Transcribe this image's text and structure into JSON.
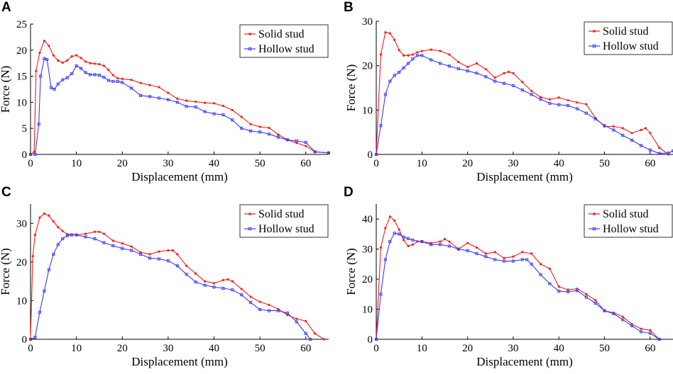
{
  "figure": {
    "colors": {
      "solid": "#ff1a1a",
      "hollow": "#3a3aff"
    }
  },
  "chart_data": [
    {
      "panel": "A",
      "type": "line",
      "xlabel": "Displacement (mm)",
      "ylabel": "Force (N)",
      "xlim": [
        0,
        65
      ],
      "ylim": [
        0,
        25
      ],
      "xticks": [
        0,
        10,
        20,
        30,
        40,
        50,
        60
      ],
      "yticks": [
        0,
        5,
        10,
        15,
        20,
        25
      ],
      "legend_position": "top-right",
      "series": [
        {
          "name": "Solid stud",
          "x": [
            0,
            0.8,
            1.2,
            2,
            3,
            4,
            5,
            6,
            7,
            8,
            9,
            10,
            11,
            12,
            13,
            14,
            15,
            16,
            17,
            18,
            19,
            20,
            22,
            24,
            26,
            28,
            30,
            32,
            34,
            36,
            38,
            40,
            42,
            44,
            46,
            48,
            50,
            52,
            54,
            56,
            58,
            60,
            62,
            65
          ],
          "y": [
            0,
            0.5,
            16,
            19.5,
            21.8,
            20.8,
            19,
            18,
            17.6,
            18,
            18.8,
            19,
            18.5,
            17.8,
            17.5,
            17.4,
            17.3,
            17,
            16.2,
            15.2,
            14.6,
            14.5,
            14.3,
            13.7,
            13.3,
            12.9,
            11.8,
            10.7,
            10.3,
            10.1,
            9.9,
            9.8,
            9.3,
            8.5,
            7.2,
            5.8,
            5.3,
            5.1,
            3.8,
            2.8,
            2.2,
            1.6,
            0.5,
            0.3
          ]
        },
        {
          "name": "Hollow stud",
          "x": [
            0,
            1,
            1.8,
            2.2,
            3,
            3.6,
            4.5,
            5.2,
            6,
            7,
            8,
            9,
            10,
            11,
            12,
            13,
            14,
            15,
            16,
            17,
            18,
            19,
            20,
            22,
            24,
            26,
            28,
            30,
            32,
            34,
            36,
            38,
            40,
            42,
            44,
            46,
            48,
            50,
            52,
            54,
            56,
            58,
            60,
            62,
            65
          ],
          "y": [
            0,
            0,
            5.8,
            15,
            18.4,
            18.2,
            12.8,
            12.5,
            13.5,
            14.3,
            14.7,
            15.5,
            17,
            16.5,
            15.7,
            15.3,
            15.3,
            15.2,
            14.8,
            14.2,
            14,
            14,
            13.8,
            12.7,
            11.3,
            11.1,
            10.8,
            10.5,
            10,
            9.2,
            9.1,
            8.2,
            7.8,
            7.6,
            6.6,
            5,
            4.5,
            4.3,
            3.9,
            3.3,
            2.8,
            2.6,
            2.3,
            0.5,
            0.3
          ]
        }
      ]
    },
    {
      "panel": "B",
      "type": "line",
      "xlabel": "Displacement (mm)",
      "ylabel": "Force (N)",
      "xlim": [
        0,
        65
      ],
      "ylim": [
        0,
        30
      ],
      "xticks": [
        0,
        10,
        20,
        30,
        40,
        50,
        60
      ],
      "yticks": [
        0,
        10,
        20,
        30
      ],
      "legend_position": "top-right",
      "series": [
        {
          "name": "Solid stud",
          "x": [
            0,
            1,
            2,
            3,
            4,
            5,
            6,
            7,
            8,
            9,
            10,
            12,
            14,
            16,
            18,
            20,
            22,
            24,
            26,
            28,
            29,
            30,
            32,
            34,
            36,
            38,
            40,
            42,
            44,
            46,
            48,
            50,
            52,
            54,
            56,
            58,
            59,
            60,
            62,
            64
          ],
          "y": [
            0,
            22.5,
            27.5,
            27.3,
            25.8,
            23.5,
            22.3,
            22.3,
            22.5,
            23,
            23.3,
            23.6,
            23.3,
            22.5,
            20.8,
            19.7,
            20.5,
            19.2,
            17.3,
            18.3,
            18.6,
            18.3,
            16.3,
            14.3,
            12.9,
            12.4,
            12.8,
            12.2,
            11.7,
            11.3,
            8.2,
            6.3,
            6.3,
            5.9,
            4.8,
            5.5,
            5.9,
            4.8,
            1.5,
            0
          ]
        },
        {
          "name": "Hollow stud",
          "x": [
            0,
            1,
            2,
            3,
            4,
            5,
            6,
            7,
            8,
            9,
            10,
            12,
            14,
            16,
            18,
            20,
            22,
            24,
            26,
            28,
            30,
            32,
            34,
            36,
            38,
            40,
            42,
            44,
            46,
            48,
            50,
            52,
            54,
            56,
            58,
            60,
            62,
            64,
            65
          ],
          "y": [
            0,
            6.5,
            13.5,
            16.5,
            17.8,
            18.5,
            19.5,
            20.5,
            21.5,
            22.3,
            22.3,
            21.3,
            20.5,
            19.9,
            19.3,
            18.8,
            18.3,
            17.5,
            16.5,
            16,
            15.5,
            14.5,
            13.5,
            12.4,
            11.5,
            11.2,
            11,
            10.3,
            9.3,
            8,
            6.5,
            5.5,
            4.3,
            3.2,
            2,
            1,
            0.2,
            0.3,
            0.8
          ]
        }
      ]
    },
    {
      "panel": "C",
      "type": "line",
      "xlabel": "Displacement (mm)",
      "ylabel": "Force (N)",
      "xlim": [
        0,
        65
      ],
      "ylim": [
        0,
        35
      ],
      "xticks": [
        0,
        10,
        20,
        30,
        40,
        50,
        60
      ],
      "yticks": [
        0,
        10,
        20,
        30
      ],
      "legend_position": "top-right",
      "series": [
        {
          "name": "Solid stud",
          "x": [
            0,
            0.5,
            1,
            2,
            3,
            4,
            5,
            6,
            7,
            8,
            10,
            12,
            14,
            15,
            16,
            18,
            20,
            22,
            24,
            26,
            28,
            30,
            31,
            32,
            34,
            36,
            38,
            40,
            42,
            43,
            44,
            46,
            48,
            50,
            52,
            54,
            56,
            58,
            60,
            62,
            64
          ],
          "y": [
            0,
            21.5,
            27,
            31.5,
            32.5,
            32,
            30.5,
            29,
            28,
            27.2,
            27,
            27.3,
            27.8,
            27.8,
            27.3,
            25.5,
            24.8,
            24,
            22.5,
            22,
            22.7,
            23,
            23,
            22,
            19,
            17,
            15,
            14.5,
            15.3,
            15.5,
            15,
            13,
            11,
            9.7,
            8.9,
            7.8,
            6.3,
            5.3,
            4.7,
            1.5,
            0
          ]
        },
        {
          "name": "Hollow stud",
          "x": [
            0,
            1,
            2,
            3,
            4,
            5,
            6,
            7,
            8,
            9,
            10,
            12,
            14,
            16,
            18,
            20,
            22,
            24,
            26,
            28,
            30,
            32,
            34,
            36,
            38,
            40,
            42,
            44,
            46,
            48,
            50,
            52,
            54,
            56,
            58,
            60,
            61
          ],
          "y": [
            0,
            0.5,
            7,
            12.5,
            18,
            22,
            24.5,
            26,
            26.8,
            27,
            27,
            26.5,
            26,
            25,
            24.2,
            23.5,
            23,
            22,
            21,
            20.8,
            20.3,
            19,
            16.8,
            14.8,
            14,
            13.5,
            13.2,
            12.8,
            11.5,
            9.5,
            7.7,
            7.4,
            7.4,
            6.8,
            4.5,
            1.5,
            0
          ]
        }
      ]
    },
    {
      "panel": "D",
      "type": "line",
      "xlabel": "Displacement (mm)",
      "ylabel": "Force (N)",
      "xlim": [
        0,
        65
      ],
      "ylim": [
        0,
        45
      ],
      "xticks": [
        0,
        10,
        20,
        30,
        40,
        50,
        60
      ],
      "yticks": [
        0,
        10,
        20,
        30,
        40
      ],
      "legend_position": "top-right",
      "series": [
        {
          "name": "Solid stud",
          "x": [
            0,
            1,
            2,
            3,
            4,
            5,
            6,
            7,
            8,
            9,
            10,
            12,
            14,
            15,
            16,
            18,
            20,
            22,
            24,
            26,
            28,
            30,
            32,
            34,
            36,
            38,
            40,
            42,
            44,
            46,
            48,
            50,
            52,
            54,
            56,
            58,
            60,
            62
          ],
          "y": [
            0,
            30.5,
            37,
            40.8,
            39.5,
            36.5,
            33,
            31,
            31.5,
            32.5,
            32.5,
            32,
            32.5,
            33.3,
            32.5,
            30,
            32,
            30.5,
            28.5,
            29,
            27,
            27.5,
            29,
            28.5,
            25,
            23.5,
            17.5,
            16.5,
            16.8,
            15,
            13,
            9.5,
            8.8,
            7.5,
            5,
            3.5,
            3,
            0
          ]
        },
        {
          "name": "Hollow stud",
          "x": [
            0,
            1,
            2,
            3,
            4,
            5,
            6,
            7,
            8,
            10,
            12,
            14,
            16,
            18,
            20,
            22,
            24,
            26,
            28,
            30,
            32,
            33,
            34,
            36,
            38,
            40,
            42,
            44,
            46,
            48,
            50,
            52,
            54,
            56,
            58,
            60,
            62
          ],
          "y": [
            0,
            15,
            26.5,
            32.5,
            35.3,
            35,
            34,
            33.5,
            33,
            32.5,
            31.5,
            31.5,
            31,
            30,
            29.5,
            28.5,
            27.5,
            26.5,
            26,
            26,
            26.5,
            26.5,
            25,
            21.5,
            18.5,
            16,
            15.8,
            16.2,
            14,
            12,
            9.5,
            8.5,
            6.5,
            4.5,
            2.5,
            2,
            0
          ]
        }
      ]
    }
  ]
}
